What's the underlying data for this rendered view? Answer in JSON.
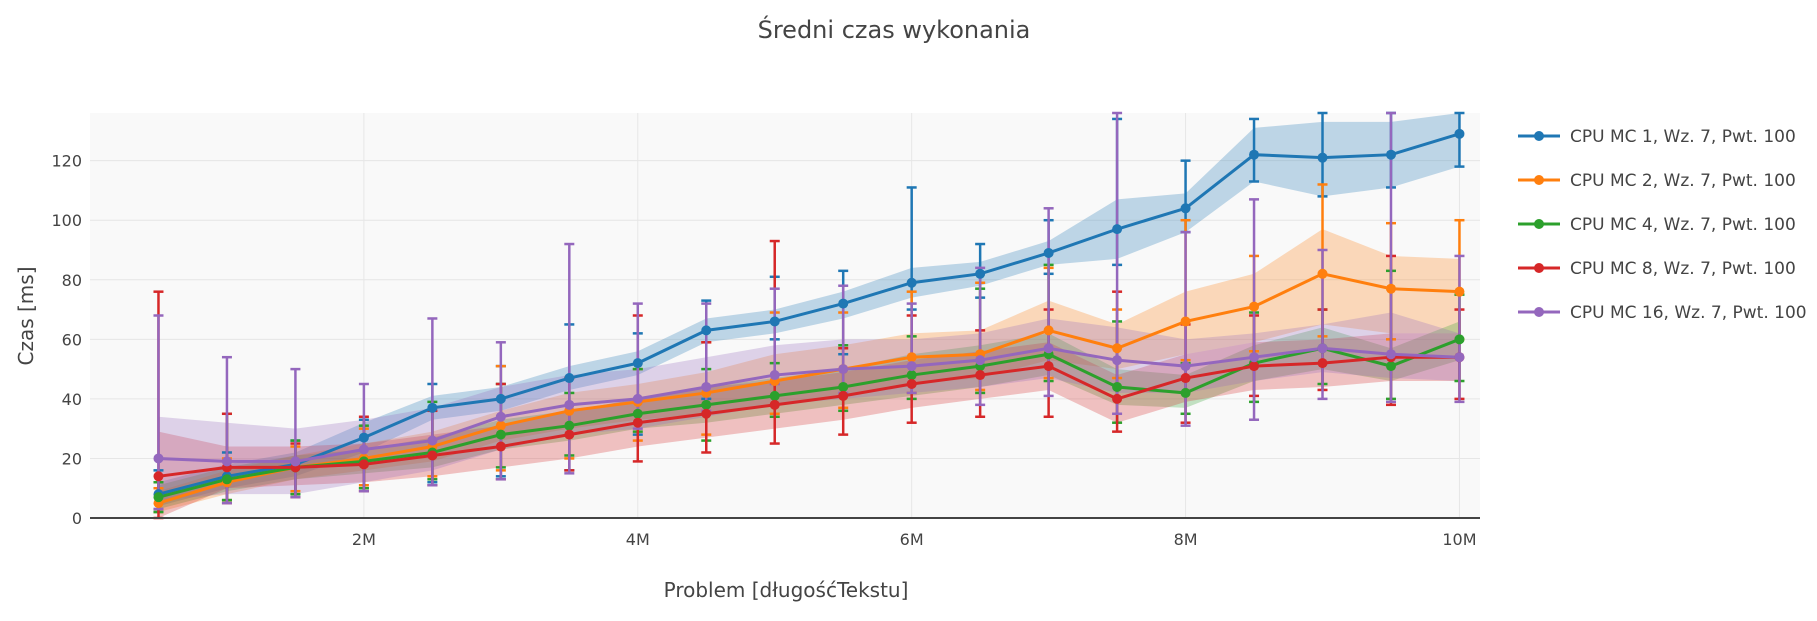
{
  "chart_data": {
    "type": "line",
    "title": "Średni czas wykonania",
    "xlabel": "Problem [długośćTekstu]",
    "ylabel": "Czas [ms]",
    "xlim": [
      0,
      10150000
    ],
    "ylim": [
      0,
      136
    ],
    "x_ticks": [
      {
        "value": 2000000,
        "label": "2M"
      },
      {
        "value": 4000000,
        "label": "4M"
      },
      {
        "value": 6000000,
        "label": "6M"
      },
      {
        "value": 8000000,
        "label": "8M"
      },
      {
        "value": 10000000,
        "label": "10M"
      }
    ],
    "y_ticks": [
      {
        "value": 0,
        "label": "0"
      },
      {
        "value": 20,
        "label": "20"
      },
      {
        "value": 40,
        "label": "40"
      },
      {
        "value": 60,
        "label": "60"
      },
      {
        "value": 80,
        "label": "80"
      },
      {
        "value": 100,
        "label": "100"
      },
      {
        "value": 120,
        "label": "120"
      }
    ],
    "grid": true,
    "legend_position": "right",
    "x": [
      500000,
      1000000,
      1500000,
      2000000,
      2500000,
      3000000,
      3500000,
      4000000,
      4500000,
      5000000,
      5500000,
      6000000,
      6500000,
      7000000,
      7500000,
      8000000,
      8500000,
      9000000,
      9500000,
      10000000
    ],
    "series": [
      {
        "name": "CPU MC 1, Wz. 7, Pwt. 100",
        "color": "#1f77b4",
        "values": [
          8,
          14,
          18,
          27,
          37,
          40,
          47,
          52,
          63,
          66,
          72,
          79,
          82,
          89,
          97,
          104,
          122,
          121,
          122,
          129
        ],
        "band_low": [
          4,
          10,
          14,
          22,
          33,
          36,
          43,
          48,
          59,
          62,
          67,
          74,
          78,
          85,
          87,
          96,
          113,
          108,
          111,
          118
        ],
        "band_high": [
          12,
          18,
          22,
          32,
          41,
          44,
          51,
          56,
          67,
          70,
          76,
          84,
          86,
          93,
          107,
          109,
          131,
          133,
          133,
          139
        ],
        "err_low": [
          3,
          6,
          8,
          10,
          12,
          14,
          16,
          28,
          40,
          60,
          55,
          70,
          74,
          82,
          85,
          96,
          113,
          108,
          111,
          118
        ],
        "err_high": [
          16,
          22,
          26,
          33,
          45,
          51,
          65,
          62,
          73,
          81,
          83,
          111,
          92,
          100,
          134,
          120,
          134,
          136,
          136,
          136
        ]
      },
      {
        "name": "CPU MC 2, Wz. 7, Pwt. 100",
        "color": "#ff7f0e",
        "values": [
          5,
          12,
          17,
          20,
          24,
          31,
          36,
          39,
          42,
          46,
          50,
          54,
          55,
          63,
          57,
          66,
          71,
          82,
          77,
          76
        ],
        "band_low": [
          2,
          8,
          13,
          16,
          19,
          26,
          30,
          33,
          35,
          38,
          41,
          45,
          47,
          53,
          50,
          55,
          59,
          65,
          62,
          62
        ],
        "band_high": [
          9,
          16,
          21,
          25,
          29,
          36,
          42,
          45,
          49,
          55,
          58,
          62,
          63,
          73,
          65,
          76,
          82,
          97,
          88,
          87
        ],
        "err_low": [
          2,
          6,
          9,
          11,
          14,
          16,
          20,
          26,
          28,
          35,
          37,
          42,
          43,
          47,
          47,
          53,
          56,
          61,
          60,
          60
        ],
        "err_high": [
          10,
          20,
          24,
          30,
          36,
          51,
          47,
          50,
          59,
          69,
          69,
          76,
          79,
          84,
          70,
          100,
          88,
          112,
          99,
          100
        ]
      },
      {
        "name": "CPU MC 4, Wz. 7, Pwt. 100",
        "color": "#2ca02c",
        "values": [
          7,
          13,
          17,
          19,
          22,
          28,
          31,
          35,
          38,
          41,
          44,
          48,
          51,
          55,
          44,
          42,
          52,
          57,
          51,
          60
        ],
        "band_low": [
          3,
          9,
          13,
          15,
          17,
          23,
          26,
          30,
          32,
          35,
          38,
          41,
          44,
          48,
          38,
          37,
          46,
          50,
          46,
          53
        ],
        "band_high": [
          11,
          17,
          21,
          23,
          27,
          33,
          36,
          40,
          44,
          47,
          50,
          55,
          58,
          62,
          50,
          48,
          58,
          64,
          57,
          66
        ],
        "err_low": [
          2,
          6,
          8,
          10,
          13,
          17,
          21,
          29,
          26,
          34,
          36,
          40,
          42,
          46,
          32,
          35,
          39,
          45,
          40,
          46
        ],
        "err_high": [
          12,
          35,
          26,
          31,
          39,
          45,
          42,
          50,
          50,
          52,
          58,
          61,
          77,
          85,
          66,
          52,
          69,
          70,
          83,
          75
        ]
      },
      {
        "name": "CPU MC 8, Wz. 7, Pwt. 100",
        "color": "#d62728",
        "values": [
          14,
          17,
          17,
          18,
          21,
          24,
          28,
          32,
          35,
          38,
          41,
          45,
          48,
          51,
          40,
          47,
          51,
          52,
          54,
          54
        ],
        "band_low": [
          0,
          10,
          11,
          12,
          14,
          17,
          20,
          24,
          27,
          30,
          33,
          37,
          40,
          43,
          32,
          39,
          43,
          44,
          46,
          46
        ],
        "band_high": [
          29,
          24,
          24,
          25,
          28,
          31,
          36,
          40,
          44,
          46,
          49,
          53,
          56,
          59,
          48,
          55,
          59,
          60,
          62,
          62
        ],
        "err_low": [
          0,
          5,
          7,
          9,
          11,
          13,
          16,
          19,
          22,
          25,
          28,
          32,
          34,
          34,
          29,
          32,
          41,
          43,
          38,
          40
        ],
        "err_high": [
          76,
          35,
          25,
          34,
          36,
          45,
          47,
          68,
          59,
          93,
          57,
          68,
          63,
          70,
          76,
          65,
          68,
          70,
          88,
          70
        ]
      },
      {
        "name": "CPU MC 16, Wz. 7, Pwt. 100",
        "color": "#9467bd",
        "values": [
          20,
          19,
          19,
          23,
          26,
          34,
          38,
          40,
          44,
          48,
          50,
          51,
          53,
          57,
          53,
          51,
          54,
          57,
          55,
          54
        ],
        "band_low": [
          6,
          8,
          8,
          12,
          16,
          23,
          28,
          30,
          34,
          38,
          40,
          42,
          44,
          47,
          42,
          42,
          46,
          49,
          47,
          46
        ],
        "band_high": [
          34,
          32,
          30,
          33,
          37,
          44,
          48,
          50,
          54,
          58,
          60,
          60,
          62,
          67,
          64,
          60,
          62,
          65,
          69,
          62
        ],
        "err_low": [
          3,
          5,
          7,
          9,
          11,
          13,
          15,
          30,
          36,
          45,
          42,
          42,
          38,
          41,
          35,
          31,
          33,
          40,
          39,
          39
        ],
        "err_high": [
          68,
          54,
          50,
          45,
          67,
          59,
          92,
          72,
          72,
          77,
          78,
          72,
          84,
          104,
          136,
          96,
          107,
          90,
          136,
          88
        ]
      }
    ]
  }
}
